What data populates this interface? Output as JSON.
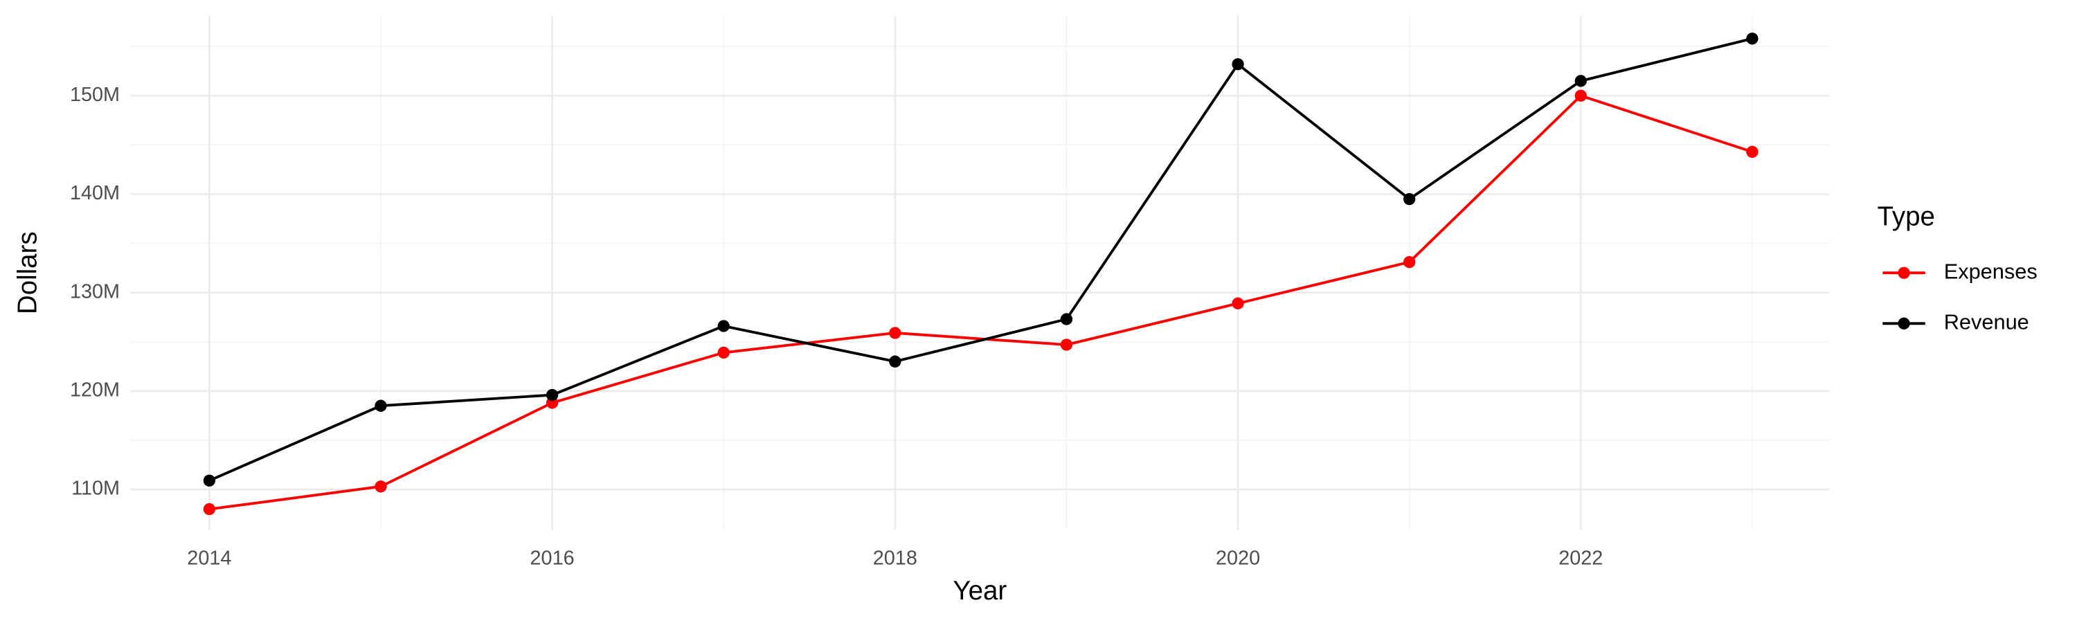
{
  "chart_data": {
    "type": "line",
    "x_label": "Year",
    "y_label": "Dollars",
    "legend_title": "Type",
    "legend_position": "right",
    "grid": true,
    "x": [
      2014,
      2015,
      2016,
      2017,
      2018,
      2019,
      2020,
      2021,
      2022,
      2023
    ],
    "series": [
      {
        "name": "Expenses",
        "color": "#ff0000",
        "values": [
          108000000,
          110300000,
          118800000,
          123900000,
          125900000,
          124700000,
          128900000,
          133100000,
          150000000,
          144300000
        ]
      },
      {
        "name": "Revenue",
        "color": "#000000",
        "values": [
          110900000,
          118500000,
          119600000,
          126600000,
          123000000,
          127300000,
          153200000,
          139500000,
          151500000,
          155800000
        ]
      }
    ],
    "xlim": [
      2013.54,
      2023.45
    ],
    "xticks": [
      2014,
      2016,
      2018,
      2020,
      2022
    ],
    "ylim": [
      105900000,
      158100000
    ],
    "yticks": [
      {
        "value": 110000000,
        "label": "110M"
      },
      {
        "value": 120000000,
        "label": "120M"
      },
      {
        "value": 130000000,
        "label": "130M"
      },
      {
        "value": 140000000,
        "label": "140M"
      },
      {
        "value": 150000000,
        "label": "150M"
      }
    ]
  }
}
